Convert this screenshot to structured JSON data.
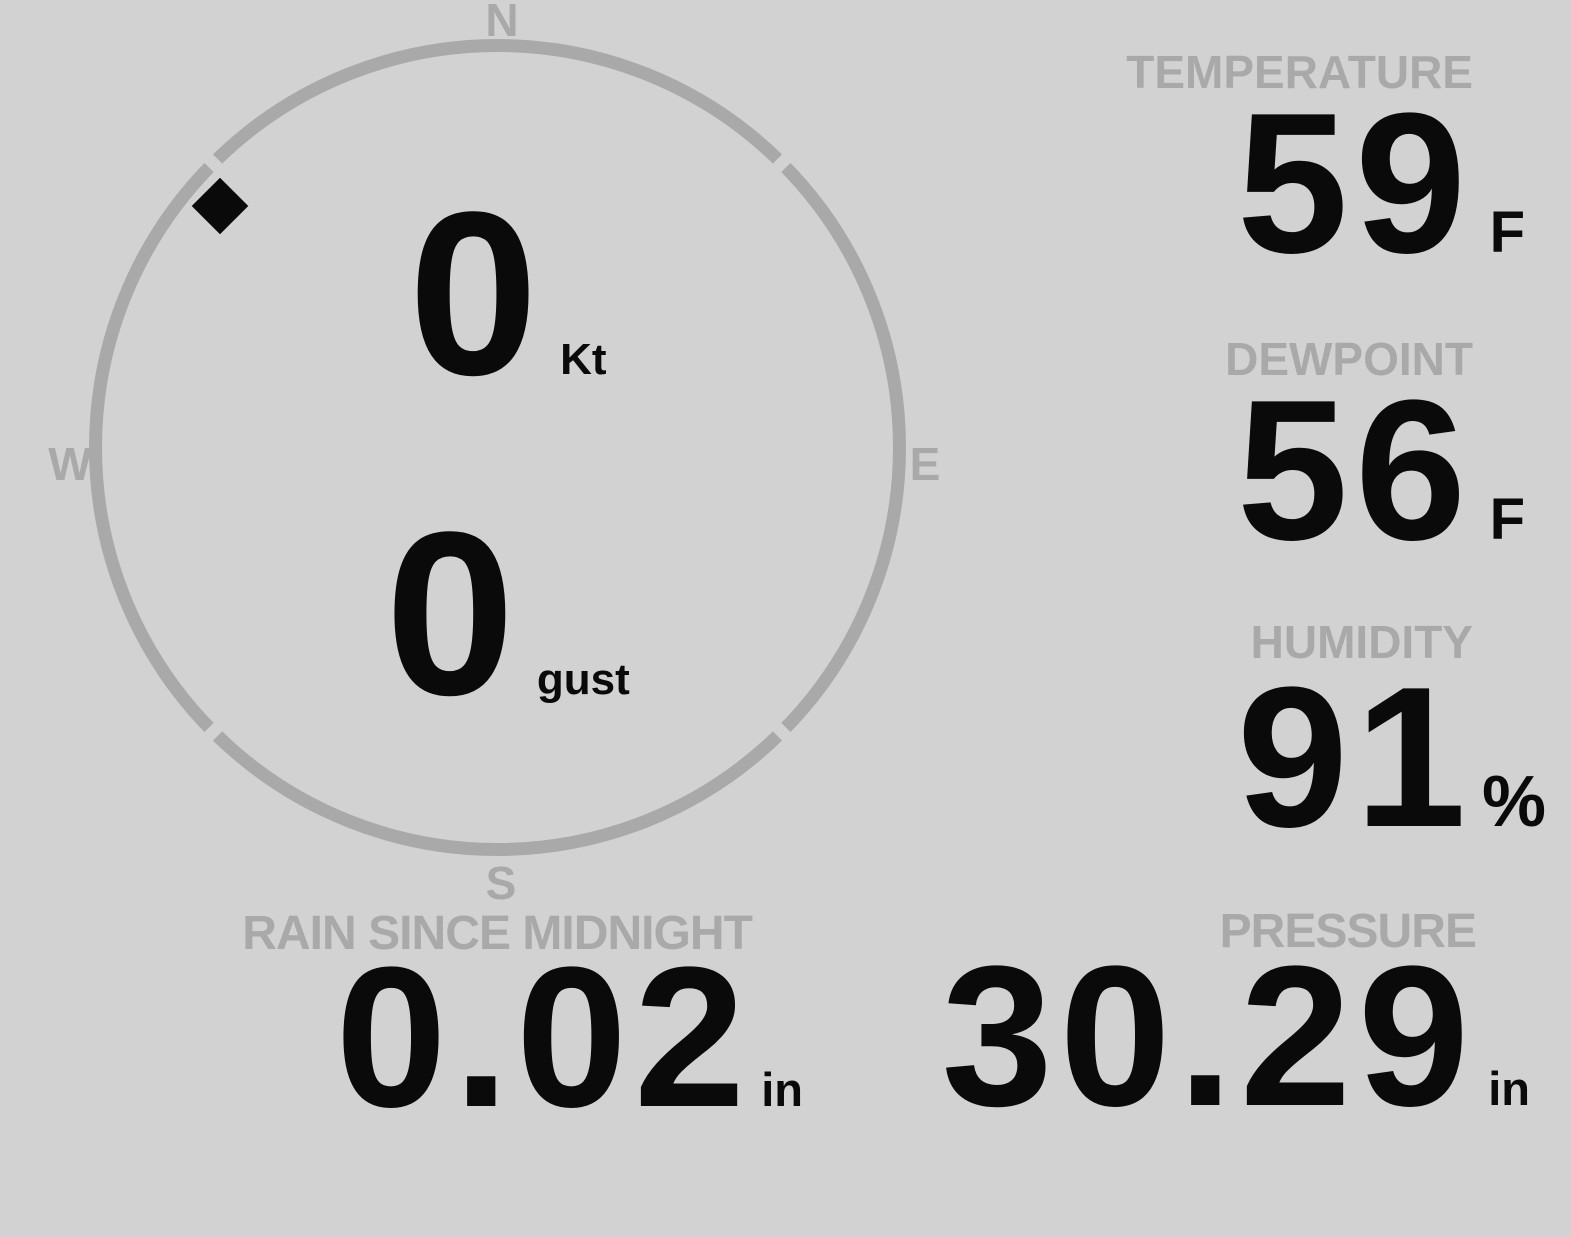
{
  "colors": {
    "background": "#d2d2d2",
    "muted_gray": "#a9a9a9",
    "value_black": "#0a0a0a"
  },
  "wind_compass": {
    "cardinals": {
      "north": "N",
      "east": "E",
      "south": "S",
      "west": "W"
    },
    "speed": {
      "value": "0",
      "unit": "Kt"
    },
    "gust": {
      "value": "0",
      "unit": "gust"
    },
    "marker_bearing_deg": 311
  },
  "metrics": {
    "temperature": {
      "label": "TEMPERATURE",
      "value": "59",
      "unit": "F"
    },
    "dewpoint": {
      "label": "DEWPOINT",
      "value": "56",
      "unit": "F"
    },
    "humidity": {
      "label": "HUMIDITY",
      "value": "91",
      "unit": "%"
    },
    "rain_since_midnight": {
      "label": "RAIN SINCE MIDNIGHT",
      "value": "0.02",
      "unit": "in"
    },
    "pressure": {
      "label": "PRESSURE",
      "value": "30.29",
      "unit": "in"
    }
  }
}
